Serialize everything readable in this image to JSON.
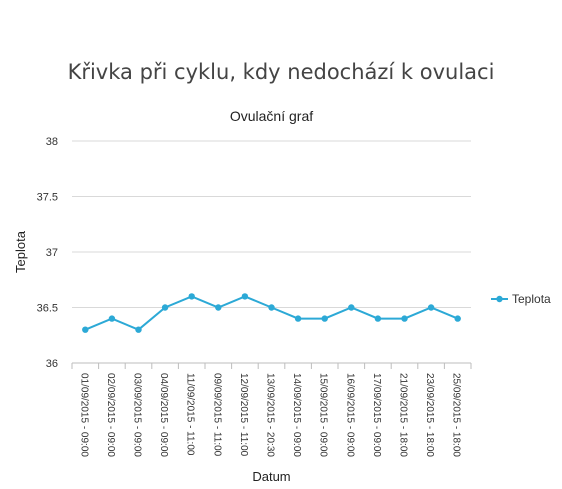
{
  "page": {
    "title": "Křivka při cyklu, kdy nedochází k ovulaci"
  },
  "chart_data": {
    "type": "line",
    "title": "Ovulační graf",
    "xlabel": "Datum",
    "ylabel": "Teplota",
    "ylim": [
      36,
      38
    ],
    "yticks": [
      "36",
      "36.5",
      "37",
      "37.5",
      "38"
    ],
    "grid": true,
    "legend_position": "right",
    "categories": [
      "01/09/2015 - 09:00",
      "02/09/2015 - 09:00",
      "03/09/2015 - 09:00",
      "04/09/2015 - 09:00",
      "11/09/2015 - 11:00",
      "09/09/2015 - 11:00",
      "12/09/2015 - 11:00",
      "13/09/2015 - 20:30",
      "14/09/2015 - 09:00",
      "15/09/2015 - 09:00",
      "16/09/2015 - 09:00",
      "17/09/2015 - 09:00",
      "21/09/2015 - 18:00",
      "23/09/2015 - 18:00",
      "25/09/2015 - 18:00"
    ],
    "series": [
      {
        "name": "Teplota",
        "color": "#2ca9d6",
        "values": [
          36.3,
          36.4,
          36.3,
          36.5,
          36.6,
          36.5,
          36.6,
          36.5,
          36.4,
          36.4,
          36.5,
          36.4,
          36.4,
          36.5,
          36.4
        ]
      }
    ]
  }
}
